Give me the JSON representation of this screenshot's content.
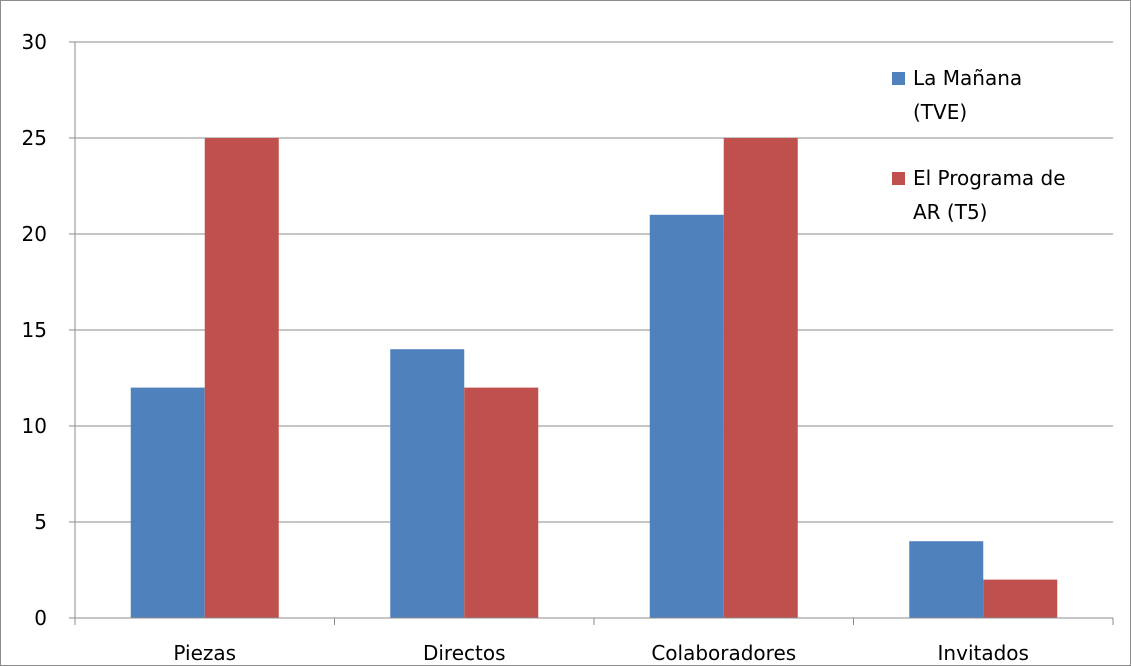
{
  "chart_data": {
    "type": "bar",
    "title": "",
    "xlabel": "",
    "ylabel": "",
    "categories": [
      "Piezas",
      "Directos",
      "Colaboradores",
      "Invitados"
    ],
    "series": [
      {
        "name": "La Mañana (TVE)",
        "legend_lines": [
          "La Mañana",
          "(TVE)"
        ],
        "color": "#4f81bd",
        "values": [
          12,
          14,
          21,
          4
        ]
      },
      {
        "name": "El Programa de AR (T5)",
        "legend_lines": [
          "El Programa de",
          "AR (T5)"
        ],
        "color": "#c0504d",
        "values": [
          25,
          12,
          25,
          2
        ]
      }
    ],
    "ylim": [
      0,
      30
    ],
    "yticks": [
      0,
      5,
      10,
      15,
      20,
      25,
      30
    ],
    "grid": true,
    "legend_position": "top-right"
  }
}
